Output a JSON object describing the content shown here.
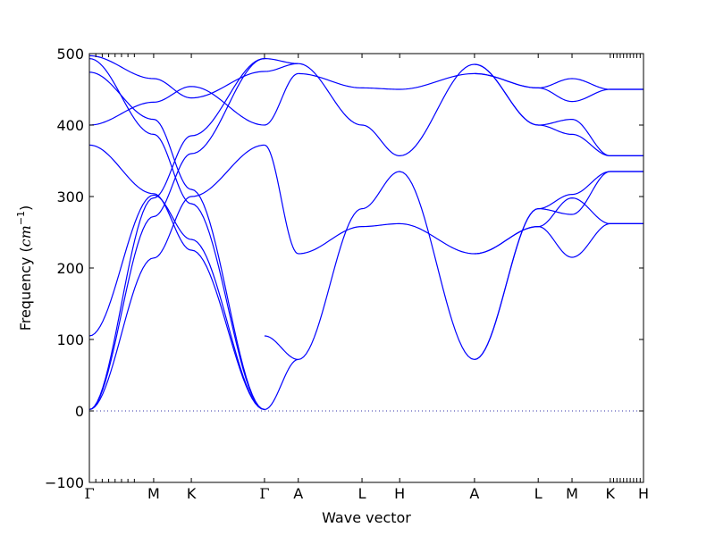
{
  "chart_data": {
    "type": "line",
    "title": "",
    "xlabel": "Wave vector",
    "ylabel_prefix": "Frequency (",
    "ylabel_unit_base": "cm",
    "ylabel_unit_exp": "−1",
    "ylabel_suffix": ")",
    "ylim": [
      -100,
      500
    ],
    "yticks": [
      -100,
      0,
      100,
      200,
      300,
      400,
      500
    ],
    "ytick_labels": [
      "−100",
      "0",
      "100",
      "200",
      "300",
      "400",
      "500"
    ],
    "xlim": [
      0,
      1
    ],
    "kpoints": [
      {
        "label": "Γ",
        "pos": 0.0
      },
      {
        "label": "M",
        "pos": 0.116
      },
      {
        "label": "K",
        "pos": 0.184
      },
      {
        "label": "Γ",
        "pos": 0.316
      },
      {
        "label": "A",
        "pos": 0.377
      },
      {
        "label": "L",
        "pos": 0.492
      },
      {
        "label": "H",
        "pos": 0.56
      },
      {
        "label": "A",
        "pos": 0.695
      },
      {
        "label": "L",
        "pos": 0.81
      },
      {
        "label": "M",
        "pos": 0.871
      },
      {
        "label": "K",
        "pos": 0.94
      },
      {
        "label": "H",
        "pos": 1.0
      }
    ],
    "zero_line": true,
    "line_color": "#0000ff",
    "branches": [
      {
        "points": [
          [
            0,
            2
          ],
          [
            0.116,
            298
          ],
          [
            0.184,
            385
          ],
          [
            0.316,
            493
          ]
        ]
      },
      {
        "points": [
          [
            0,
            2
          ],
          [
            0.116,
            272
          ],
          [
            0.184,
            360
          ],
          [
            0.316,
            493
          ]
        ]
      },
      {
        "points": [
          [
            0,
            2
          ],
          [
            0.116,
            214
          ],
          [
            0.184,
            300
          ],
          [
            0.316,
            372
          ]
        ]
      },
      {
        "points": [
          [
            0,
            105
          ],
          [
            0.116,
            302
          ],
          [
            0.184,
            240
          ],
          [
            0.316,
            2
          ]
        ]
      },
      {
        "points": [
          [
            0,
            372
          ],
          [
            0.116,
            304
          ],
          [
            0.184,
            225
          ],
          [
            0.316,
            2
          ]
        ]
      },
      {
        "points": [
          [
            0,
            400
          ],
          [
            0.116,
            432
          ],
          [
            0.184,
            454
          ],
          [
            0.316,
            400
          ]
        ]
      },
      {
        "points": [
          [
            0,
            474
          ],
          [
            0.116,
            408
          ],
          [
            0.184,
            310
          ],
          [
            0.316,
            2
          ]
        ]
      },
      {
        "points": [
          [
            0,
            493
          ],
          [
            0.116,
            387
          ],
          [
            0.184,
            290
          ],
          [
            0.316,
            2
          ]
        ]
      },
      {
        "points": [
          [
            0,
            497
          ],
          [
            0.116,
            465
          ],
          [
            0.184,
            438
          ],
          [
            0.316,
            475
          ]
        ]
      },
      {
        "points": [
          [
            0.316,
            2
          ],
          [
            0.377,
            72
          ]
        ]
      },
      {
        "points": [
          [
            0.316,
            105
          ],
          [
            0.377,
            72
          ]
        ]
      },
      {
        "points": [
          [
            0.316,
            372
          ],
          [
            0.377,
            220
          ]
        ]
      },
      {
        "points": [
          [
            0.316,
            400
          ],
          [
            0.377,
            472
          ]
        ]
      },
      {
        "points": [
          [
            0.316,
            475
          ],
          [
            0.377,
            486
          ]
        ]
      },
      {
        "points": [
          [
            0.316,
            493
          ],
          [
            0.377,
            486
          ]
        ]
      },
      {
        "points": [
          [
            0.377,
            72
          ],
          [
            0.492,
            283
          ],
          [
            0.56,
            335
          ],
          [
            0.695,
            72
          ]
        ]
      },
      {
        "points": [
          [
            0.377,
            220
          ],
          [
            0.492,
            258
          ],
          [
            0.56,
            262
          ],
          [
            0.695,
            220
          ]
        ]
      },
      {
        "points": [
          [
            0.377,
            472
          ],
          [
            0.492,
            452
          ],
          [
            0.56,
            450
          ],
          [
            0.695,
            472
          ]
        ]
      },
      {
        "points": [
          [
            0.377,
            486
          ],
          [
            0.492,
            400
          ],
          [
            0.56,
            357
          ],
          [
            0.695,
            485
          ]
        ]
      },
      {
        "points": [
          [
            0.695,
            72
          ],
          [
            0.81,
            283
          ],
          [
            0.871,
            303
          ],
          [
            0.94,
            335
          ],
          [
            1.0,
            335
          ]
        ]
      },
      {
        "points": [
          [
            0.695,
            72
          ],
          [
            0.81,
            283
          ],
          [
            0.871,
            275
          ],
          [
            0.94,
            335
          ],
          [
            1.0,
            335
          ]
        ]
      },
      {
        "points": [
          [
            0.695,
            220
          ],
          [
            0.81,
            258
          ],
          [
            0.871,
            215
          ],
          [
            0.94,
            262
          ],
          [
            1.0,
            262
          ]
        ]
      },
      {
        "points": [
          [
            0.695,
            220
          ],
          [
            0.81,
            258
          ],
          [
            0.871,
            298
          ],
          [
            0.94,
            262
          ],
          [
            1.0,
            262
          ]
        ]
      },
      {
        "points": [
          [
            0.695,
            472
          ],
          [
            0.81,
            452
          ],
          [
            0.871,
            465
          ],
          [
            0.94,
            450
          ],
          [
            1.0,
            450
          ]
        ]
      },
      {
        "points": [
          [
            0.695,
            472
          ],
          [
            0.81,
            452
          ],
          [
            0.871,
            433
          ],
          [
            0.94,
            450
          ],
          [
            1.0,
            450
          ]
        ]
      },
      {
        "points": [
          [
            0.695,
            485
          ],
          [
            0.81,
            400
          ],
          [
            0.871,
            408
          ],
          [
            0.94,
            357
          ],
          [
            1.0,
            357
          ]
        ]
      },
      {
        "points": [
          [
            0.695,
            485
          ],
          [
            0.81,
            400
          ],
          [
            0.871,
            387
          ],
          [
            0.94,
            357
          ],
          [
            1.0,
            357
          ]
        ]
      }
    ]
  }
}
